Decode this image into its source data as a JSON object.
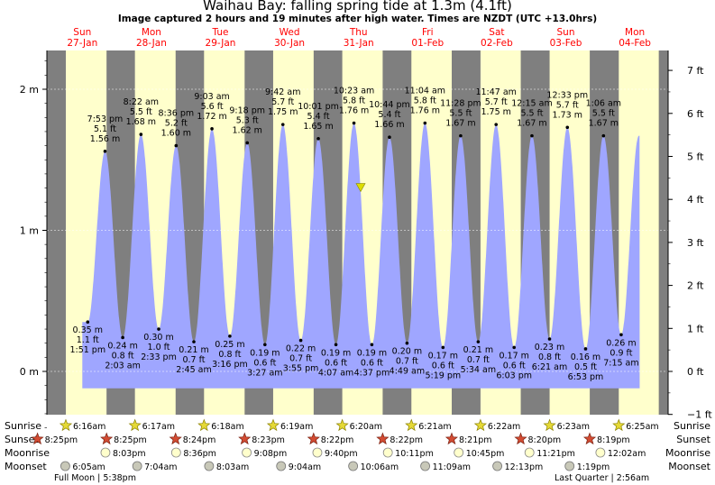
{
  "title": "Waihau Bay: falling  spring tide at 1.3m (4.1ft)",
  "subtitle": "Image captured 2 hours and 19 minutes after high water. Times are NZDT (UTC +13.0hrs)",
  "colors": {
    "night": "#7f7f7f",
    "day": "#ffffcc",
    "water": "#9fa6ff",
    "header": "#ff0000",
    "marker": "#dddd00",
    "grid": "#ffffff"
  },
  "days": [
    {
      "dow": "Sun",
      "date": "27-Jan"
    },
    {
      "dow": "Mon",
      "date": "28-Jan"
    },
    {
      "dow": "Tue",
      "date": "29-Jan"
    },
    {
      "dow": "Wed",
      "date": "30-Jan"
    },
    {
      "dow": "Thu",
      "date": "31-Jan"
    },
    {
      "dow": "Fri",
      "date": "01-Feb"
    },
    {
      "dow": "Sat",
      "date": "02-Feb"
    },
    {
      "dow": "Sun",
      "date": "03-Feb"
    },
    {
      "dow": "Mon",
      "date": "04-Feb"
    }
  ],
  "chart_data": {
    "type": "area",
    "title": "Waihau Bay: falling  spring tide at 1.3m (4.1ft)",
    "x_start": "Sun 27-Jan 00:00",
    "x_range_days": [
      0,
      9.3
    ],
    "y_left": {
      "unit": "m",
      "ticks": [
        "0 m",
        "1 m",
        "2 m"
      ],
      "tick_values": [
        0,
        1,
        2
      ],
      "range": [
        -0.45,
        2.26
      ]
    },
    "y_right": {
      "unit": "ft",
      "ticks": [
        "−1 ft",
        "0 ft",
        "1 ft",
        "2 ft",
        "3 ft",
        "4 ft",
        "5 ft",
        "6 ft",
        "7 ft"
      ],
      "tick_values": [
        -1,
        0,
        1,
        2,
        3,
        4,
        5,
        6,
        7
      ]
    },
    "series": [
      {
        "time": "1:51 pm",
        "time_days": 0.578,
        "height_m": 0.35,
        "lines": [
          "0.35 m",
          "1.1 ft",
          "1:51 pm"
        ],
        "type": "low"
      },
      {
        "time": "7:53 pm",
        "time_days": 0.829,
        "height_m": 1.56,
        "lines": [
          "7:53 pm",
          "5.1 ft",
          "1.56 m"
        ],
        "type": "high"
      },
      {
        "time": "2:03 am",
        "time_days": 1.085,
        "height_m": 0.24,
        "lines": [
          "0.24 m",
          "0.8 ft",
          "2:03 am"
        ],
        "type": "low"
      },
      {
        "time": "8:22 am",
        "time_days": 1.349,
        "height_m": 1.68,
        "lines": [
          "8:22 am",
          "5.5 ft",
          "1.68 m"
        ],
        "type": "high"
      },
      {
        "time": "2:33 pm",
        "time_days": 1.606,
        "height_m": 0.3,
        "lines": [
          "0.30 m",
          "1.0 ft",
          "2:33 pm"
        ],
        "type": "low"
      },
      {
        "time": "8:36 pm",
        "time_days": 1.858,
        "height_m": 1.6,
        "lines": [
          "8:36 pm",
          "5.2 ft",
          "1.60 m"
        ],
        "type": "high"
      },
      {
        "time": "2:45 am",
        "time_days": 2.115,
        "height_m": 0.21,
        "lines": [
          "0.21 m",
          "0.7 ft",
          "2:45 am"
        ],
        "type": "low"
      },
      {
        "time": "9:03 am",
        "time_days": 2.377,
        "height_m": 1.72,
        "lines": [
          "9:03 am",
          "5.6 ft",
          "1.72 m"
        ],
        "type": "high"
      },
      {
        "time": "3:16 pm",
        "time_days": 2.636,
        "height_m": 0.25,
        "lines": [
          "0.25 m",
          "0.8 ft",
          "3:16 pm"
        ],
        "type": "low"
      },
      {
        "time": "9:18 pm",
        "time_days": 2.888,
        "height_m": 1.62,
        "lines": [
          "9:18 pm",
          "5.3 ft",
          "1.62 m"
        ],
        "type": "high"
      },
      {
        "time": "3:27 am",
        "time_days": 3.144,
        "height_m": 0.19,
        "lines": [
          "0.19 m",
          "0.6 ft",
          "3:27 am"
        ],
        "type": "low"
      },
      {
        "time": "9:42 am",
        "time_days": 3.404,
        "height_m": 1.75,
        "lines": [
          "9:42 am",
          "5.7 ft",
          "1.75 m"
        ],
        "type": "high"
      },
      {
        "time": "3:55 pm",
        "time_days": 3.663,
        "height_m": 0.22,
        "lines": [
          "0.22 m",
          "0.7 ft",
          "3:55 pm"
        ],
        "type": "low"
      },
      {
        "time": "10:01 pm",
        "time_days": 3.917,
        "height_m": 1.65,
        "lines": [
          "10:01 pm",
          "5.4 ft",
          "1.65 m"
        ],
        "type": "high"
      },
      {
        "time": "4:07 am",
        "time_days": 4.172,
        "height_m": 0.19,
        "lines": [
          "0.19 m",
          "0.6 ft",
          "4:07 am"
        ],
        "type": "low"
      },
      {
        "time": "10:23 am",
        "time_days": 4.433,
        "height_m": 1.76,
        "lines": [
          "10:23 am",
          "5.8 ft",
          "1.76 m"
        ],
        "type": "high"
      },
      {
        "time": "4:37 pm",
        "time_days": 4.692,
        "height_m": 0.19,
        "lines": [
          "0.19 m",
          "0.6 ft",
          "4:37 pm"
        ],
        "type": "low"
      },
      {
        "time": "10:44 pm",
        "time_days": 4.947,
        "height_m": 1.66,
        "lines": [
          "10:44 pm",
          "5.4 ft",
          "1.66 m"
        ],
        "type": "high"
      },
      {
        "time": "4:49 am",
        "time_days": 5.201,
        "height_m": 0.2,
        "lines": [
          "0.20 m",
          "0.7 ft",
          "4:49 am"
        ],
        "type": "low"
      },
      {
        "time": "11:04 am",
        "time_days": 5.461,
        "height_m": 1.76,
        "lines": [
          "11:04 am",
          "5.8 ft",
          "1.76 m"
        ],
        "type": "high"
      },
      {
        "time": "5:19 pm",
        "time_days": 5.722,
        "height_m": 0.17,
        "lines": [
          "0.17 m",
          "0.6 ft",
          "5:19 pm"
        ],
        "type": "low"
      },
      {
        "time": "11:28 pm",
        "time_days": 5.978,
        "height_m": 1.67,
        "lines": [
          "11:28 pm",
          "5.5 ft",
          "1.67 m"
        ],
        "type": "high"
      },
      {
        "time": "5:34 am",
        "time_days": 6.232,
        "height_m": 0.21,
        "lines": [
          "0.21 m",
          "0.7 ft",
          "5:34 am"
        ],
        "type": "low"
      },
      {
        "time": "11:47 am",
        "time_days": 6.491,
        "height_m": 1.75,
        "lines": [
          "11:47 am",
          "5.7 ft",
          "1.75 m"
        ],
        "type": "high"
      },
      {
        "time": "6:03 pm",
        "time_days": 6.752,
        "height_m": 0.17,
        "lines": [
          "0.17 m",
          "0.6 ft",
          "6:03 pm"
        ],
        "type": "low"
      },
      {
        "time": "12:15 am",
        "time_days": 7.01,
        "height_m": 1.67,
        "lines": [
          "12:15 am",
          "5.5 ft",
          "1.67 m"
        ],
        "type": "high"
      },
      {
        "time": "6:21 am",
        "time_days": 7.265,
        "height_m": 0.23,
        "lines": [
          "0.23 m",
          "0.8 ft",
          "6:21 am"
        ],
        "type": "low"
      },
      {
        "time": "12:33 pm",
        "time_days": 7.523,
        "height_m": 1.73,
        "lines": [
          "12:33 pm",
          "5.7 ft",
          "1.73 m"
        ],
        "type": "high"
      },
      {
        "time": "6:53 pm",
        "time_days": 7.787,
        "height_m": 0.16,
        "lines": [
          "0.16 m",
          "0.5 ft",
          "6:53 pm"
        ],
        "type": "low"
      },
      {
        "time": "1:06 am",
        "time_days": 8.046,
        "height_m": 1.67,
        "lines": [
          "1:06 am",
          "5.5 ft",
          "1.67 m"
        ],
        "type": "high"
      },
      {
        "time": "7:15 am",
        "time_days": 8.302,
        "height_m": 0.26,
        "lines": [
          "0.26 m",
          "0.9 ft",
          "7:15 am"
        ],
        "type": "low"
      }
    ],
    "current": {
      "time_days": 4.53,
      "height_m": 1.3
    },
    "sunrise": [
      "6:16am",
      "6:17am",
      "6:18am",
      "6:19am",
      "6:20am",
      "6:21am",
      "6:22am",
      "6:23am",
      "6:25am"
    ],
    "sunset": [
      "8:25pm",
      "8:25pm",
      "8:24pm",
      "8:23pm",
      "8:22pm",
      "8:22pm",
      "8:21pm",
      "8:20pm",
      "8:19pm"
    ],
    "moonrise": [
      "8:03pm",
      "8:36pm",
      "9:08pm",
      "9:40pm",
      "10:11pm",
      "10:45pm",
      "11:21pm",
      "12:02am"
    ],
    "moonset": [
      "6:05am",
      "7:04am",
      "8:03am",
      "9:04am",
      "10:06am",
      "11:09am",
      "12:13pm",
      "1:19pm"
    ],
    "moon_phases": [
      "Full Moon | 5:38pm",
      "Last Quarter | 2:56am"
    ]
  },
  "row_labels": {
    "sunrise": "Sunrise",
    "sunset": "Sunset",
    "moonrise": "Moonrise",
    "moonset": "Moonset"
  }
}
